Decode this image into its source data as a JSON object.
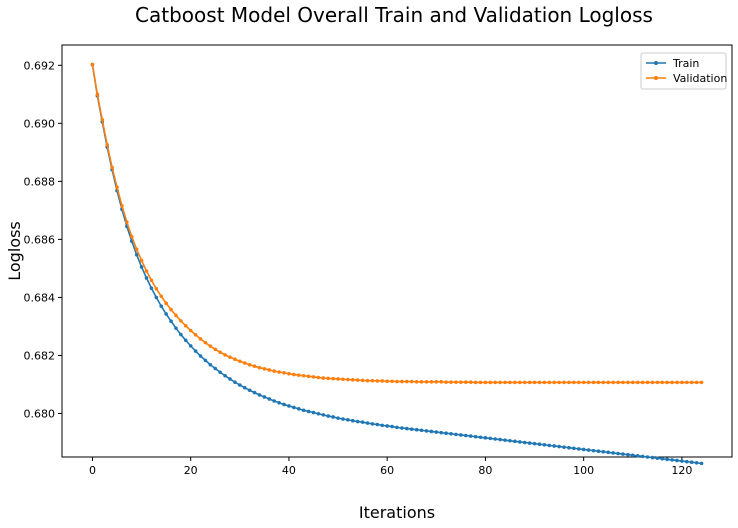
{
  "chart_data": {
    "type": "line",
    "title": "Catboost Model Overall Train and Validation Logloss",
    "xlabel": "Iterations",
    "ylabel": "Logloss",
    "xlim": [
      -6.2,
      130.2
    ],
    "ylim": [
      0.6785,
      0.6927
    ],
    "xticks": [
      0,
      20,
      40,
      60,
      80,
      100,
      120
    ],
    "yticks": [
      0.68,
      0.682,
      0.684,
      0.686,
      0.688,
      0.69,
      0.692
    ],
    "ytick_labels": [
      "0.680",
      "0.682",
      "0.684",
      "0.686",
      "0.688",
      "0.690",
      "0.692"
    ],
    "grid": false,
    "legend": "top-right",
    "marker": "dot",
    "series": [
      {
        "name": "Train",
        "color": "#1f77b4",
        "values": [
          0.69202,
          0.69095,
          0.69005,
          0.68918,
          0.6884,
          0.68768,
          0.68704,
          0.68645,
          0.68594,
          0.68547,
          0.68505,
          0.68467,
          0.68432,
          0.684,
          0.6837,
          0.68343,
          0.68318,
          0.68294,
          0.68272,
          0.68252,
          0.68233,
          0.68215,
          0.68198,
          0.68183,
          0.68168,
          0.68155,
          0.68142,
          0.6813,
          0.68119,
          0.68108,
          0.68098,
          0.68089,
          0.6808,
          0.68072,
          0.68064,
          0.68057,
          0.6805,
          0.68043,
          0.68037,
          0.68031,
          0.68026,
          0.68021,
          0.68016,
          0.68011,
          0.68007,
          0.68003,
          0.67999,
          0.67995,
          0.67991,
          0.67988,
          0.67984,
          0.67981,
          0.67978,
          0.67975,
          0.67972,
          0.6797,
          0.67967,
          0.67964,
          0.67962,
          0.67959,
          0.67957,
          0.67955,
          0.67952,
          0.6795,
          0.67948,
          0.67946,
          0.67944,
          0.67942,
          0.6794,
          0.67938,
          0.67936,
          0.67934,
          0.67932,
          0.6793,
          0.67928,
          0.67926,
          0.67924,
          0.67922,
          0.6792,
          0.67918,
          0.67916,
          0.67914,
          0.67912,
          0.6791,
          0.67908,
          0.67906,
          0.67904,
          0.67902,
          0.679,
          0.67898,
          0.67896,
          0.67894,
          0.67892,
          0.6789,
          0.67888,
          0.67886,
          0.67884,
          0.67882,
          0.6788,
          0.67878,
          0.67876,
          0.67874,
          0.67872,
          0.6787,
          0.67868,
          0.67866,
          0.67864,
          0.67862,
          0.6786,
          0.67858,
          0.67856,
          0.67854,
          0.67852,
          0.6785,
          0.67848,
          0.67846,
          0.67844,
          0.67842,
          0.6784,
          0.67838,
          0.67836,
          0.67834,
          0.67832,
          0.6783,
          0.67828
        ]
      },
      {
        "name": "Validation",
        "color": "#ff7f0e",
        "values": [
          0.69203,
          0.691,
          0.69012,
          0.68926,
          0.68848,
          0.6878,
          0.68716,
          0.6866,
          0.6861,
          0.68566,
          0.68527,
          0.68491,
          0.68459,
          0.6843,
          0.68404,
          0.6838,
          0.68358,
          0.68338,
          0.68319,
          0.68302,
          0.68286,
          0.68271,
          0.68257,
          0.68244,
          0.68232,
          0.68221,
          0.68211,
          0.68202,
          0.68194,
          0.68187,
          0.6818,
          0.68174,
          0.68168,
          0.68163,
          0.68158,
          0.68154,
          0.6815,
          0.68146,
          0.68143,
          0.6814,
          0.68137,
          0.68134,
          0.68132,
          0.6813,
          0.68128,
          0.68126,
          0.68124,
          0.68122,
          0.68121,
          0.6812,
          0.68119,
          0.68118,
          0.68117,
          0.68116,
          0.68115,
          0.68114,
          0.68113,
          0.68113,
          0.68112,
          0.68112,
          0.68111,
          0.68111,
          0.6811,
          0.6811,
          0.6811,
          0.6811,
          0.68109,
          0.68109,
          0.68109,
          0.68109,
          0.68109,
          0.68109,
          0.68108,
          0.68108,
          0.68108,
          0.68108,
          0.68108,
          0.68108,
          0.68107,
          0.68107,
          0.68107,
          0.68107,
          0.68107,
          0.68107,
          0.68107,
          0.68107,
          0.68107,
          0.68107,
          0.68107,
          0.68107,
          0.68107,
          0.68107,
          0.68107,
          0.68107,
          0.68107,
          0.68107,
          0.68107,
          0.68107,
          0.68107,
          0.68107,
          0.68107,
          0.68107,
          0.68107,
          0.68107,
          0.68107,
          0.68107,
          0.68107,
          0.68107,
          0.68107,
          0.68107,
          0.68107,
          0.68107,
          0.68107,
          0.68107,
          0.68107,
          0.68107,
          0.68107,
          0.68107,
          0.68107,
          0.68107,
          0.68107,
          0.68107,
          0.68107,
          0.68107,
          0.68107
        ]
      }
    ]
  }
}
